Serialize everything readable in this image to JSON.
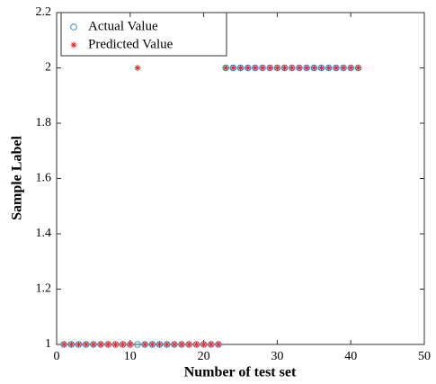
{
  "chart_data": {
    "type": "scatter",
    "x_label": "Number of test set",
    "y_label": "Sample Label",
    "x": [
      1,
      2,
      3,
      4,
      5,
      6,
      7,
      8,
      9,
      10,
      11,
      12,
      13,
      14,
      15,
      16,
      17,
      18,
      19,
      20,
      21,
      22,
      23,
      24,
      25,
      26,
      27,
      28,
      29,
      30,
      31,
      32,
      33,
      34,
      35,
      36,
      37,
      38,
      39,
      40,
      41
    ],
    "series": [
      {
        "name": "Actual Value",
        "color": "#3a8fc0",
        "marker": "circle",
        "values": [
          1,
          1,
          1,
          1,
          1,
          1,
          1,
          1,
          1,
          1,
          1,
          1,
          1,
          1,
          1,
          1,
          1,
          1,
          1,
          1,
          1,
          1,
          2,
          2,
          2,
          2,
          2,
          2,
          2,
          2,
          2,
          2,
          2,
          2,
          2,
          2,
          2,
          2,
          2,
          2,
          2
        ]
      },
      {
        "name": "Predicted Value",
        "color": "#e8272a",
        "marker": "asterisk",
        "values": [
          1,
          1,
          1,
          1,
          1,
          1,
          1,
          1,
          1,
          1,
          2,
          1,
          1,
          1,
          1,
          1,
          1,
          1,
          1,
          1,
          1,
          1,
          2,
          2,
          2,
          2,
          2,
          2,
          2,
          2,
          2,
          2,
          2,
          2,
          2,
          2,
          2,
          2,
          2,
          2,
          2
        ]
      }
    ],
    "xlim": [
      0,
      50
    ],
    "xticks": [
      0,
      10,
      20,
      30,
      40,
      50
    ],
    "ylim": [
      1,
      2.2
    ],
    "yticks": [
      1,
      1.2,
      1.4,
      1.6,
      1.8,
      2,
      2.2
    ],
    "legend": "upper-left",
    "grid": false
  }
}
